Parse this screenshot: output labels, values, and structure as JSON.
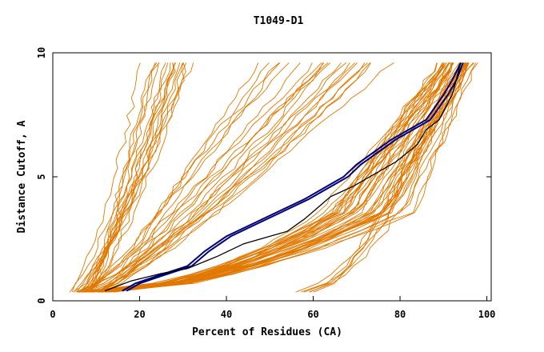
{
  "chart_data": {
    "type": "line",
    "title": "T1049-D1",
    "xlabel": "Percent of Residues (CA)",
    "ylabel": "Distance Cutoff, A",
    "xlim": [
      0,
      101
    ],
    "ylim": [
      0,
      10
    ],
    "xticks": [
      0,
      20,
      40,
      60,
      80,
      100
    ],
    "yticks": [
      0,
      5,
      10
    ],
    "xtick_labels": [
      "0",
      "20",
      "40",
      "60",
      "80",
      "100"
    ],
    "ytick_labels": [
      "0",
      "5",
      "10"
    ],
    "grid": false,
    "colors": {
      "background_models": "#e07800",
      "highlight_blue": "#00007a",
      "highlight_black": "#000000",
      "axes": "#000000"
    },
    "background_bundles": [
      {
        "count": 18,
        "start_x": [
          4,
          9
        ],
        "mid_x": [
          12,
          22
        ],
        "end_x": [
          20,
          35
        ],
        "end_y": 9.6,
        "shape": "steep"
      },
      {
        "count": 22,
        "start_x": [
          5,
          12
        ],
        "mid_x": [
          22,
          45
        ],
        "end_x": [
          45,
          80
        ],
        "end_y": 9.6,
        "shape": "medium"
      },
      {
        "count": 40,
        "start_x": [
          5,
          14
        ],
        "mid_x": [
          60,
          85
        ],
        "end_x": [
          88,
          98
        ],
        "end_y": 9.6,
        "shape": "late"
      },
      {
        "count": 6,
        "start_x": [
          56,
          60
        ],
        "mid_x": [
          85,
          92
        ],
        "end_x": [
          95,
          97
        ],
        "end_y": 9.6,
        "shape": "outlier"
      }
    ],
    "series": [
      {
        "color": "#00007a",
        "x": [
          16,
          19,
          24,
          31,
          35,
          40,
          46,
          52,
          58,
          63,
          67,
          70,
          74,
          78,
          82,
          86,
          88,
          90,
          92,
          94
        ],
        "y": [
          0.4,
          0.7,
          1.0,
          1.4,
          2.0,
          2.6,
          3.1,
          3.6,
          4.1,
          4.6,
          5.0,
          5.5,
          6.0,
          6.5,
          6.9,
          7.3,
          7.8,
          8.3,
          8.9,
          9.6
        ]
      },
      {
        "color": "#00007a",
        "x": [
          17,
          20,
          25,
          32,
          36,
          41,
          47,
          53,
          59,
          64,
          68,
          71,
          75,
          79,
          83,
          87,
          89,
          91,
          93,
          94.5
        ],
        "y": [
          0.4,
          0.7,
          1.0,
          1.4,
          2.0,
          2.6,
          3.1,
          3.6,
          4.1,
          4.6,
          5.0,
          5.5,
          6.0,
          6.5,
          6.9,
          7.3,
          7.8,
          8.3,
          8.9,
          9.6
        ]
      },
      {
        "color": "#000000",
        "x": [
          12,
          18,
          25,
          31,
          38,
          44,
          50,
          54,
          58,
          64,
          69,
          74,
          79,
          84,
          86,
          89,
          92,
          94
        ],
        "y": [
          0.4,
          0.8,
          1.1,
          1.3,
          1.8,
          2.3,
          2.6,
          2.8,
          3.3,
          4.2,
          4.6,
          5.1,
          5.6,
          6.3,
          6.9,
          7.3,
          8.3,
          9.6
        ]
      }
    ]
  }
}
